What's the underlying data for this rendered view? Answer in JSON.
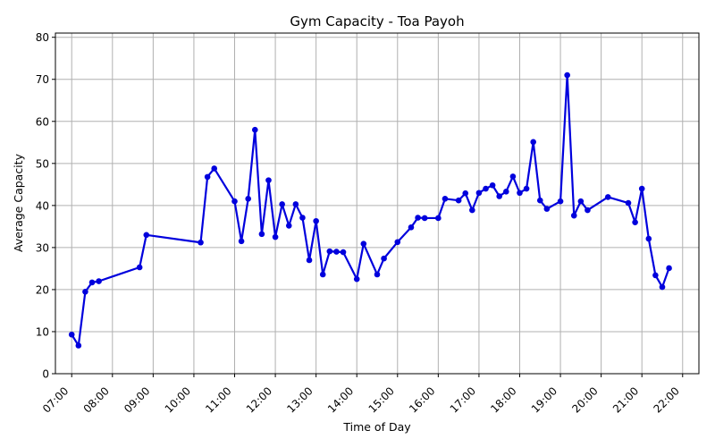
{
  "chart_data": {
    "type": "line",
    "title": "Gym Capacity - Toa Payoh",
    "xlabel": "Time of Day",
    "ylabel": "Average Capacity",
    "xlim": [
      "06:36",
      "22:24"
    ],
    "ylim": [
      0,
      81
    ],
    "x_ticks": [
      "07:00",
      "08:00",
      "09:00",
      "10:00",
      "11:00",
      "12:00",
      "13:00",
      "14:00",
      "15:00",
      "16:00",
      "17:00",
      "18:00",
      "19:00",
      "20:00",
      "21:00",
      "22:00"
    ],
    "y_ticks": [
      0,
      10,
      20,
      30,
      40,
      50,
      60,
      70,
      80
    ],
    "grid": true,
    "line_color": "#0000dd",
    "series": [
      {
        "x": [
          "07:00",
          "07:10",
          "07:20",
          "07:30",
          "07:40",
          "08:40",
          "08:50",
          "10:10",
          "10:20",
          "10:30",
          "11:00",
          "11:10",
          "11:20",
          "11:30",
          "11:40",
          "11:50",
          "12:00",
          "12:10",
          "12:20",
          "12:30",
          "12:40",
          "12:50",
          "13:00",
          "13:10",
          "13:20",
          "13:30",
          "13:40",
          "14:00",
          "14:10",
          "14:30",
          "14:40",
          "15:00",
          "15:20",
          "15:30",
          "15:40",
          "16:00",
          "16:10",
          "16:30",
          "16:40",
          "16:50",
          "17:00",
          "17:10",
          "17:20",
          "17:30",
          "17:40",
          "17:50",
          "18:00",
          "18:10",
          "18:20",
          "18:30",
          "18:40",
          "19:00",
          "19:10",
          "19:20",
          "19:30",
          "19:40",
          "20:10",
          "20:40",
          "20:50",
          "21:00",
          "21:10",
          "21:20",
          "21:30",
          "21:40"
        ],
        "values": [
          9.3,
          6.7,
          19.5,
          21.7,
          22.0,
          25.3,
          33.0,
          31.2,
          46.8,
          48.8,
          41.0,
          31.5,
          41.6,
          58.0,
          33.2,
          46.0,
          32.5,
          40.3,
          35.2,
          40.3,
          37.1,
          27.0,
          36.3,
          23.6,
          29.1,
          29.0,
          28.9,
          22.5,
          30.9,
          23.6,
          27.4,
          31.3,
          34.8,
          37.1,
          37.0,
          37.0,
          41.6,
          41.2,
          42.9,
          38.9,
          43.0,
          44.0,
          44.8,
          42.2,
          43.3,
          46.9,
          43.0,
          44.0,
          55.1,
          41.2,
          39.2,
          41.0,
          71.0,
          37.6,
          41.0,
          38.9,
          42.0,
          40.6,
          36.0,
          44.0,
          32.1,
          23.4,
          20.6,
          25.1
        ]
      }
    ]
  }
}
